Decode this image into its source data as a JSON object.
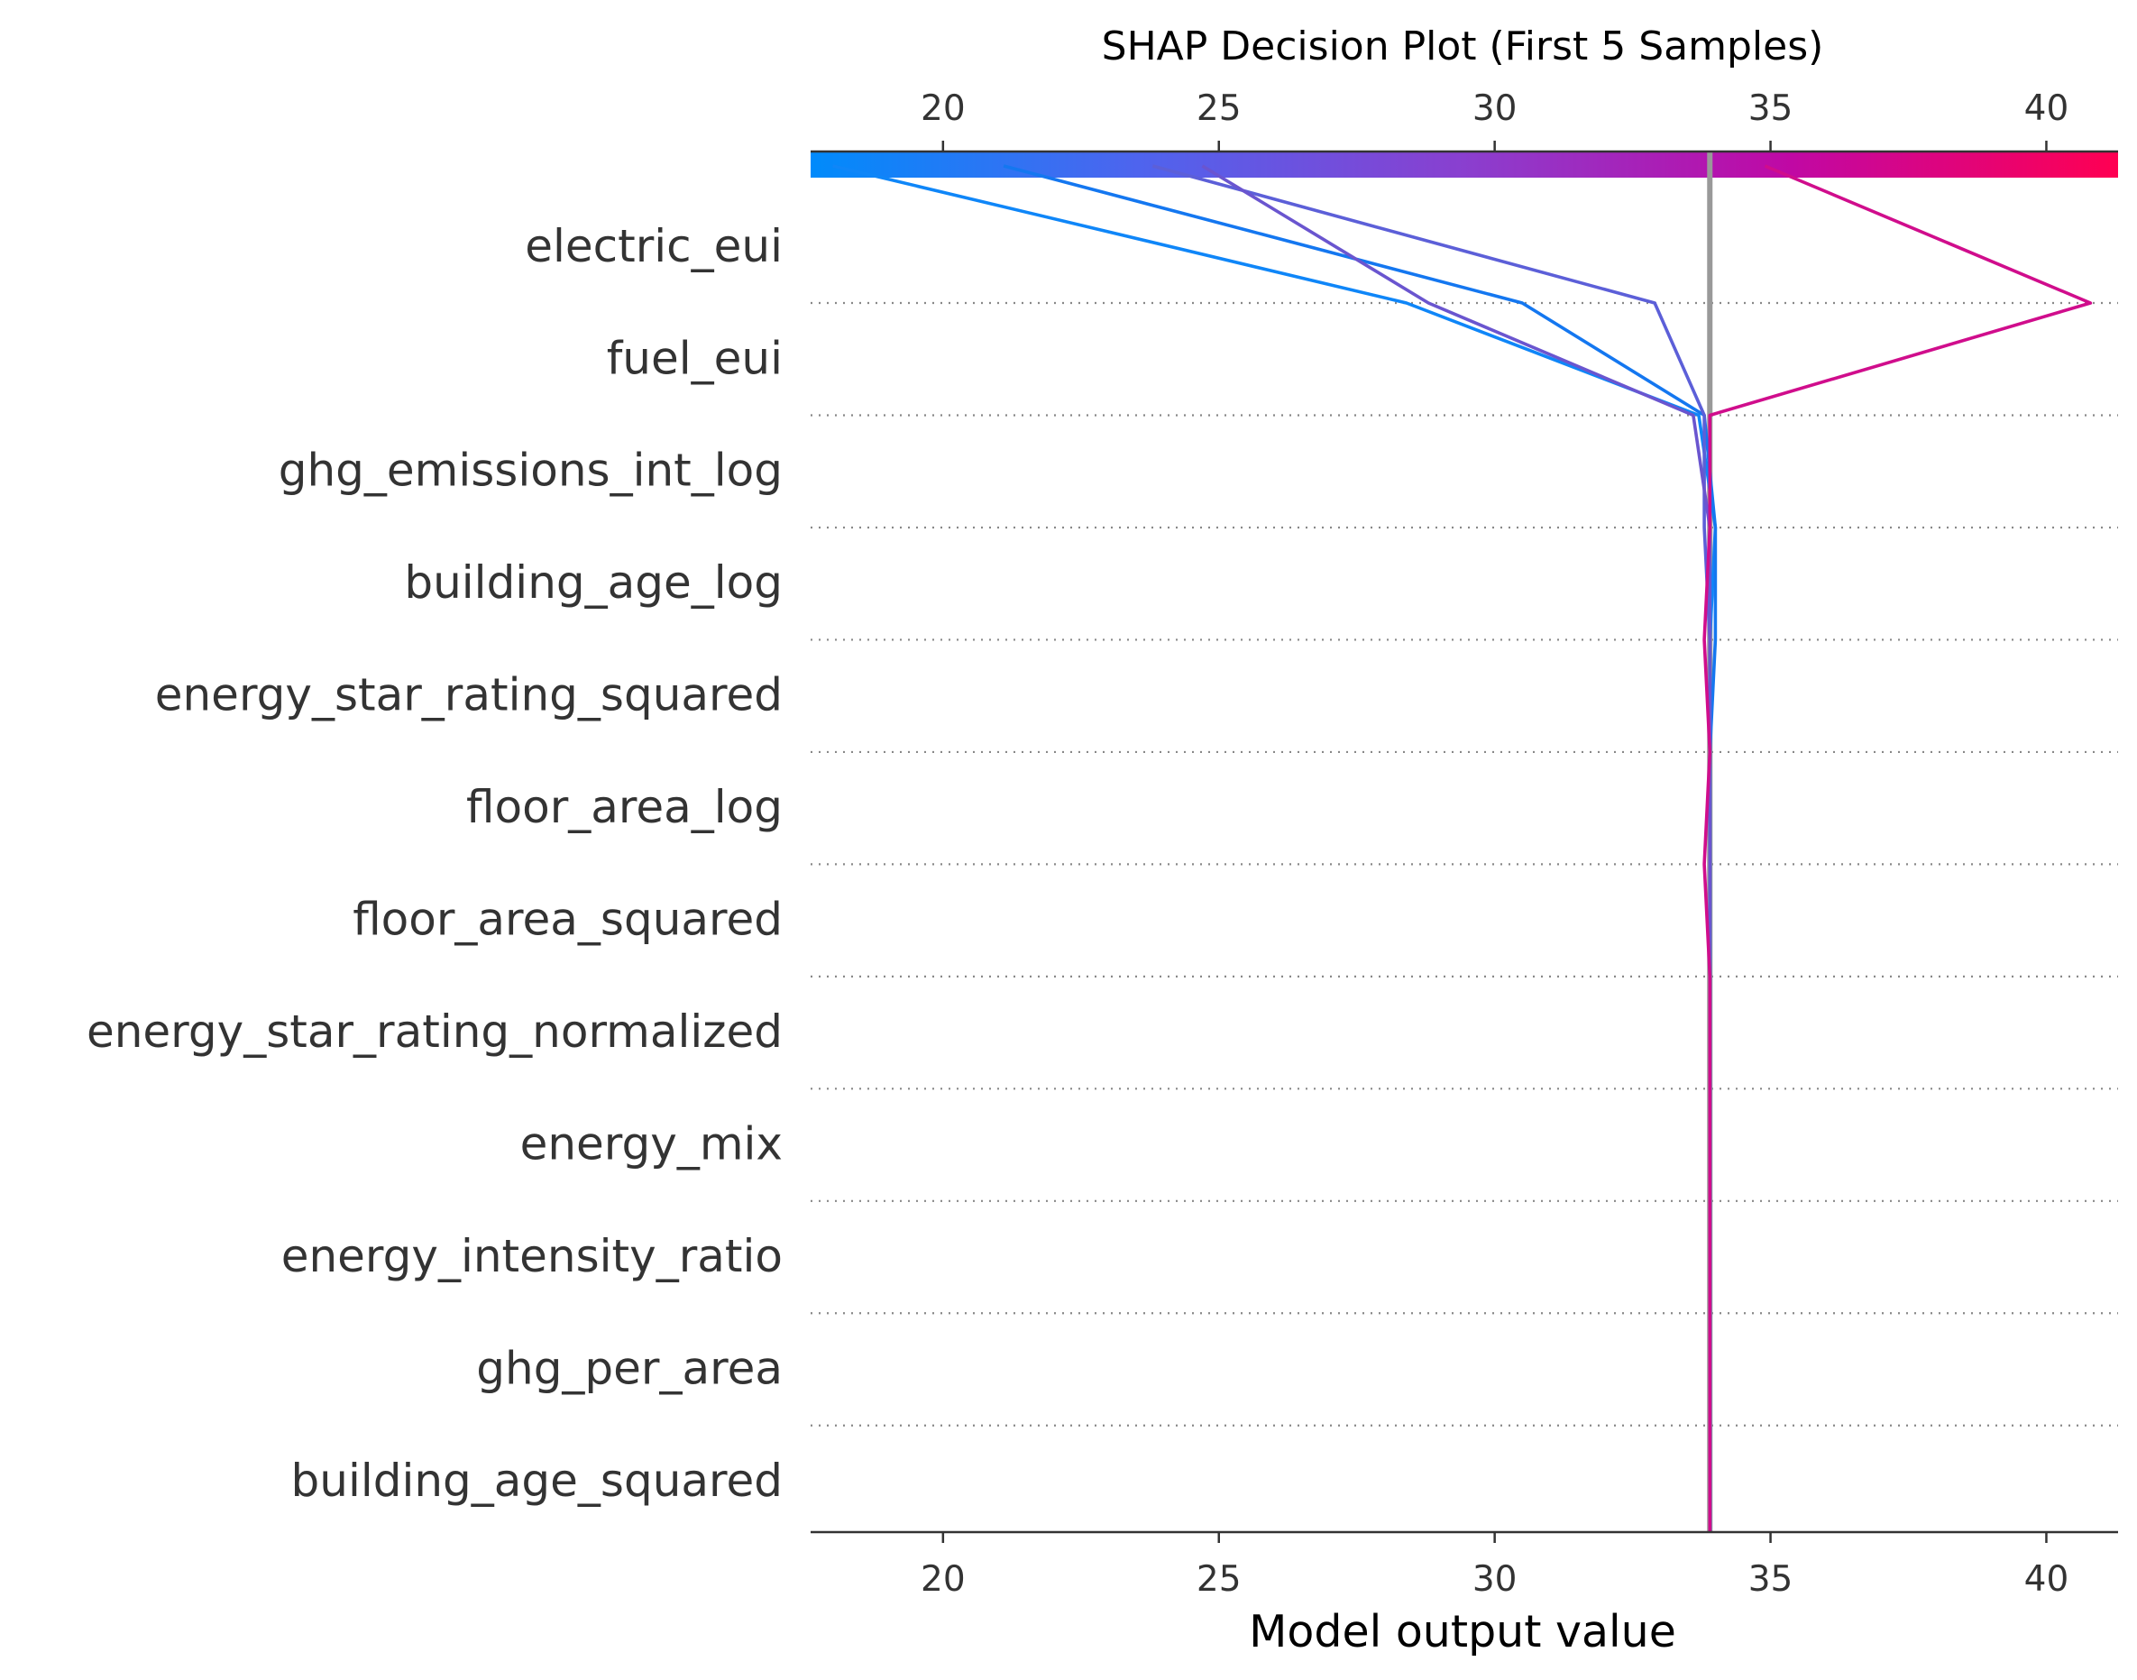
{
  "chart_data": {
    "type": "line",
    "title": "SHAP Decision Plot (First 5 Samples)",
    "xlabel": "Model output value",
    "ylabel": "",
    "xlim": [
      17.6,
      41.3
    ],
    "x_ticks": [
      20,
      25,
      30,
      35,
      40
    ],
    "x_tick_labels": [
      "20",
      "25",
      "30",
      "35",
      "40"
    ],
    "expected_value": 33.9,
    "features": [
      "electric_eui",
      "fuel_eui",
      "ghg_emissions_int_log",
      "building_age_log",
      "energy_star_rating_squared",
      "floor_area_log",
      "floor_area_squared",
      "energy_star_rating_normalized",
      "energy_mix",
      "energy_intensity_ratio",
      "ghg_per_area",
      "building_age_squared"
    ],
    "colorbar": {
      "min": 17.6,
      "max": 41.3,
      "colors": [
        "#008bfb",
        "#4e64ee",
        "#8a3fcf",
        "#c008a4",
        "#ff0052"
      ]
    },
    "grid": "dotted horizontal lines between features",
    "series": [
      {
        "color": "#0f86f8",
        "values": [
          33.9,
          33.9,
          33.9,
          33.9,
          33.9,
          33.9,
          33.9,
          33.9,
          34.0,
          33.7,
          28.4,
          18.0
        ]
      },
      {
        "color": "#1477f0",
        "values": [
          33.9,
          33.9,
          33.9,
          33.9,
          33.9,
          33.9,
          33.9,
          34.0,
          34.0,
          33.8,
          30.5,
          21.1
        ]
      },
      {
        "color": "#5c5fd8",
        "values": [
          33.9,
          33.9,
          33.9,
          33.9,
          33.9,
          33.9,
          33.9,
          33.9,
          33.8,
          33.8,
          32.9,
          23.8
        ]
      },
      {
        "color": "#6a55cf",
        "values": [
          33.9,
          33.9,
          33.9,
          33.9,
          33.9,
          33.9,
          33.9,
          33.9,
          33.9,
          33.6,
          28.8,
          24.7
        ]
      },
      {
        "color": "#d00d8c",
        "values": [
          33.9,
          33.9,
          33.9,
          33.9,
          33.9,
          33.8,
          33.9,
          33.8,
          33.9,
          33.9,
          40.8,
          34.9
        ]
      }
    ]
  }
}
